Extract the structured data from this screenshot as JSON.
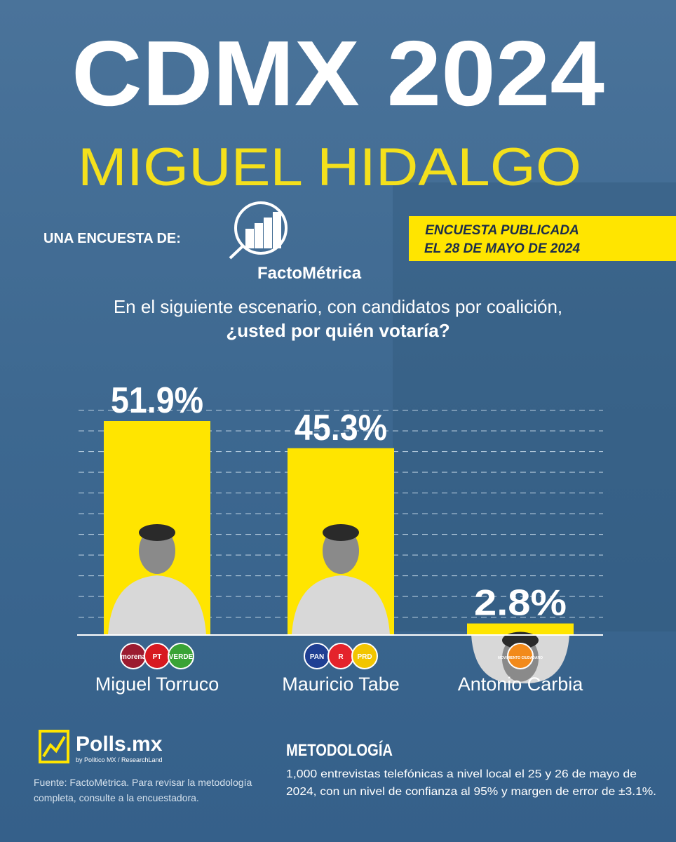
{
  "chart_data": {
    "type": "bar",
    "title": "CDMX 2024",
    "subtitle": "MIGUEL HIDALGO",
    "question": [
      "En el siguiente escenario, con candidatos por coalición,",
      "¿usted por quién votaría?"
    ],
    "categories": [
      "Miguel Torruco",
      "Mauricio Tabe",
      "Antonio Carbia"
    ],
    "values": [
      51.9,
      45.3,
      2.8
    ],
    "value_labels": [
      "51.9%",
      "45.3%",
      "2.8%"
    ],
    "color": "#ffe500",
    "parties": [
      [
        "morena",
        "PT",
        "VERDE"
      ],
      [
        "PAN",
        "R",
        "PRD"
      ],
      [
        "MOVIMIENTO CIUDADANO"
      ]
    ]
  },
  "survey": {
    "label": "UNA ENCUESTA DE:",
    "pollster": "FactoMétrica",
    "published": [
      "ENCUESTA PUBLICADA",
      "EL 28 DE MAYO DE 2024"
    ]
  },
  "footer": {
    "brand": "Polls.mx",
    "brand_sub": "by Político MX / ResearchLand",
    "source": [
      "Fuente: FactoMétrica. Para revisar la metodología",
      "completa, consulte a la encuestadora."
    ],
    "methodology_title": "METODOLOGÍA",
    "methodology": [
      "1,000 entrevistas telefónicas a nivel local el 25 y 26 de mayo de",
      "2024, con un nivel de confianza al 95% y margen de error de ±3.1%."
    ]
  }
}
